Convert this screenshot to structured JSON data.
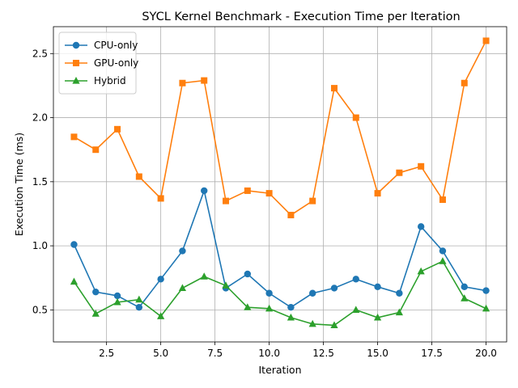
{
  "chart_data": {
    "type": "line",
    "title": "SYCL Kernel Benchmark - Execution Time per Iteration",
    "xlabel": "Iteration",
    "ylabel": "Execution Time (ms)",
    "xlim": [
      0.05,
      20.95
    ],
    "ylim": [
      0.25,
      2.71
    ],
    "xticks": [
      2.5,
      5.0,
      7.5,
      10.0,
      12.5,
      15.0,
      17.5,
      20.0
    ],
    "xtick_labels": [
      "2.5",
      "5.0",
      "7.5",
      "10.0",
      "12.5",
      "15.0",
      "17.5",
      "20.0"
    ],
    "yticks": [
      0.5,
      1.0,
      1.5,
      2.0,
      2.5
    ],
    "ytick_labels": [
      "0.5",
      "1.0",
      "1.5",
      "2.0",
      "2.5"
    ],
    "grid": true,
    "legend_position": "top-left",
    "x": [
      1,
      2,
      3,
      4,
      5,
      6,
      7,
      8,
      9,
      10,
      11,
      12,
      13,
      14,
      15,
      16,
      17,
      18,
      19,
      20
    ],
    "series": [
      {
        "name": "CPU-only",
        "color": "#1f77b4",
        "marker": "circle",
        "values": [
          1.01,
          0.64,
          0.61,
          0.52,
          0.74,
          0.96,
          1.43,
          0.67,
          0.78,
          0.63,
          0.52,
          0.63,
          0.67,
          0.74,
          0.68,
          0.63,
          1.15,
          0.96,
          0.68,
          0.65
        ]
      },
      {
        "name": "GPU-only",
        "color": "#ff7f0e",
        "marker": "square",
        "values": [
          1.85,
          1.75,
          1.91,
          1.54,
          1.37,
          2.27,
          2.29,
          1.35,
          1.43,
          1.41,
          1.24,
          1.35,
          2.23,
          2.0,
          1.41,
          1.57,
          1.62,
          1.36,
          2.27,
          2.6
        ]
      },
      {
        "name": "Hybrid",
        "color": "#2ca02c",
        "marker": "triangle",
        "values": [
          0.72,
          0.47,
          0.56,
          0.58,
          0.45,
          0.67,
          0.76,
          0.69,
          0.52,
          0.51,
          0.44,
          0.39,
          0.38,
          0.5,
          0.44,
          0.48,
          0.8,
          0.88,
          0.59,
          0.51
        ]
      }
    ]
  }
}
